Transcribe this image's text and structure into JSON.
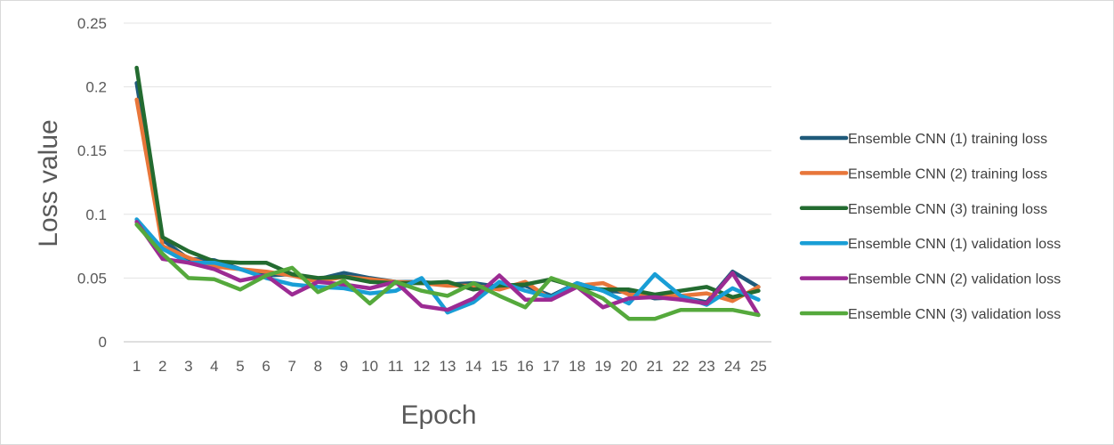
{
  "chart_data": {
    "type": "line",
    "title": "",
    "xlabel": "Epoch",
    "ylabel": "Loss value",
    "ylim": [
      0,
      0.25
    ],
    "yticks": [
      "0",
      "0.05",
      "0.1",
      "0.15",
      "0.2",
      "0.25"
    ],
    "ytick_values": [
      0,
      0.05,
      0.1,
      0.15,
      0.2,
      0.25
    ],
    "x": [
      1,
      2,
      3,
      4,
      5,
      6,
      7,
      8,
      9,
      10,
      11,
      12,
      13,
      14,
      15,
      16,
      17,
      18,
      19,
      20,
      21,
      22,
      23,
      24,
      25
    ],
    "grid": "horizontal",
    "legend_position": "right",
    "series": [
      {
        "name": "Ensemble CNN (1) training loss",
        "color": "#1f5a7a",
        "values": [
          0.203,
          0.08,
          0.065,
          0.064,
          0.057,
          0.052,
          0.053,
          0.049,
          0.054,
          0.05,
          0.047,
          0.047,
          0.045,
          0.046,
          0.043,
          0.044,
          0.036,
          0.046,
          0.04,
          0.039,
          0.034,
          0.035,
          0.031,
          0.055,
          0.043
        ]
      },
      {
        "name": "Ensemble CNN (2) training loss",
        "color": "#e8763a",
        "values": [
          0.19,
          0.075,
          0.066,
          0.059,
          0.057,
          0.055,
          0.052,
          0.047,
          0.051,
          0.049,
          0.047,
          0.046,
          0.044,
          0.044,
          0.041,
          0.047,
          0.033,
          0.044,
          0.046,
          0.037,
          0.036,
          0.036,
          0.038,
          0.032,
          0.043
        ]
      },
      {
        "name": "Ensemble CNN (3) training loss",
        "color": "#236b30",
        "values": [
          0.215,
          0.082,
          0.071,
          0.063,
          0.062,
          0.062,
          0.053,
          0.05,
          0.051,
          0.047,
          0.046,
          0.046,
          0.047,
          0.041,
          0.044,
          0.045,
          0.049,
          0.043,
          0.041,
          0.041,
          0.037,
          0.04,
          0.043,
          0.035,
          0.04
        ]
      },
      {
        "name": "Ensemble CNN (1) validation loss",
        "color": "#199ed6",
        "values": [
          0.096,
          0.073,
          0.062,
          0.062,
          0.057,
          0.05,
          0.045,
          0.043,
          0.042,
          0.038,
          0.04,
          0.05,
          0.023,
          0.031,
          0.047,
          0.04,
          0.035,
          0.046,
          0.04,
          0.03,
          0.053,
          0.036,
          0.029,
          0.042,
          0.033
        ]
      },
      {
        "name": "Ensemble CNN (2) validation loss",
        "color": "#9c2b93",
        "values": [
          0.094,
          0.065,
          0.062,
          0.057,
          0.048,
          0.052,
          0.037,
          0.047,
          0.045,
          0.042,
          0.047,
          0.028,
          0.025,
          0.034,
          0.052,
          0.033,
          0.033,
          0.043,
          0.027,
          0.034,
          0.035,
          0.033,
          0.03,
          0.054,
          0.021
        ]
      },
      {
        "name": "Ensemble CNN (3) validation loss",
        "color": "#55a93c",
        "values": [
          0.092,
          0.069,
          0.05,
          0.049,
          0.041,
          0.052,
          0.058,
          0.039,
          0.048,
          0.03,
          0.047,
          0.04,
          0.036,
          0.046,
          0.036,
          0.027,
          0.05,
          0.043,
          0.034,
          0.018,
          0.018,
          0.025,
          0.025,
          0.025,
          0.021
        ]
      }
    ]
  }
}
